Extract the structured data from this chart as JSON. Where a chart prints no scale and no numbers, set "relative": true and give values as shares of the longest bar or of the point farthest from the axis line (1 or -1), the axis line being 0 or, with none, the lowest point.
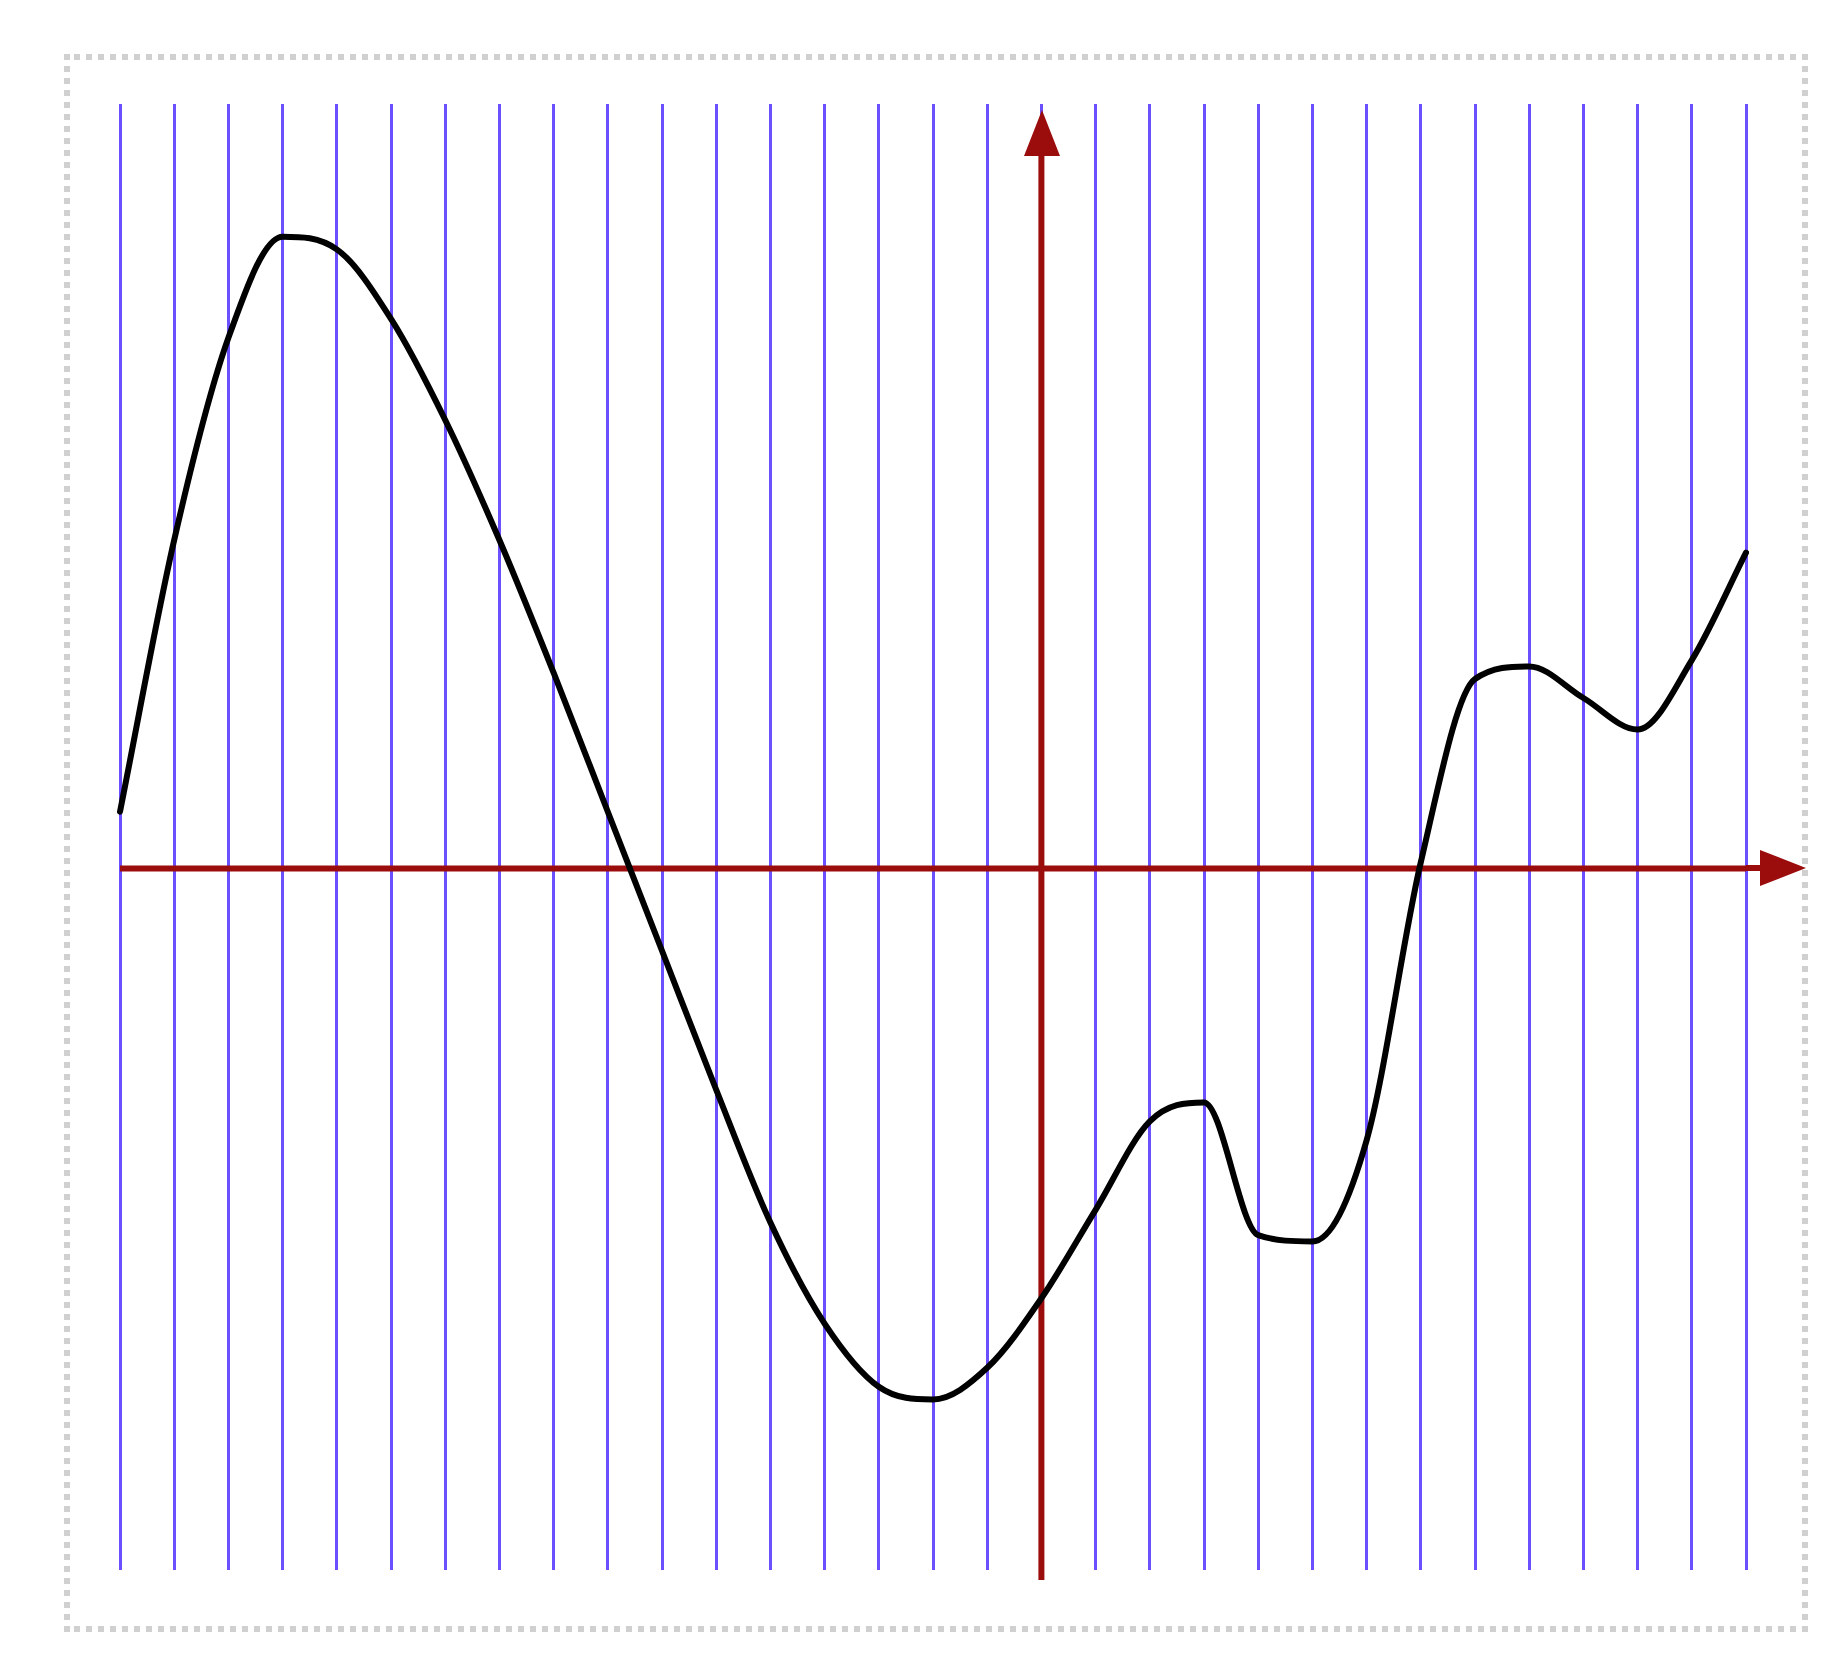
{
  "chart_data": {
    "type": "line",
    "relative": true,
    "grid": "x",
    "legend": false,
    "ref_lines": [
      {
        "axis": "y",
        "value": 0,
        "color": "#9b0d0d"
      }
    ],
    "marker": "none",
    "line_style": "solid",
    "categories": [
      null,
      null,
      null,
      null,
      null,
      null,
      null,
      null,
      null,
      null,
      null,
      null,
      null,
      null,
      null,
      null,
      null,
      null,
      null,
      null,
      null,
      null,
      null,
      null,
      null,
      null,
      null,
      null,
      null,
      null,
      null
    ],
    "series": [
      {
        "color": "#000000",
        "values": [
          0.09,
          0.52,
          0.84,
          1,
          0.98,
          0.87,
          0.71,
          0.52,
          0.31,
          0.09,
          -0.13,
          -0.35,
          -0.56,
          -0.72,
          -0.82,
          -0.84,
          -0.79,
          -0.68,
          -0.54,
          -0.4,
          -0.37,
          -0.58,
          -0.59,
          -0.43,
          0.01,
          0.3,
          0.32,
          0.27,
          0.22,
          0.33,
          0.5
        ]
      }
    ]
  }
}
